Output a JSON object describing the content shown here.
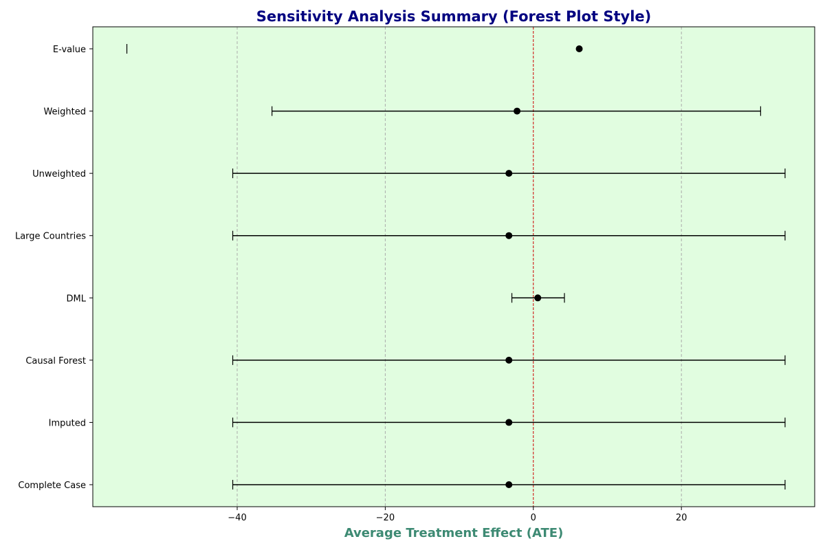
{
  "chart_data": {
    "type": "forest",
    "title": "Sensitivity Analysis Summary (Forest Plot Style)",
    "xlabel": "Average Treatment Effect (ATE)",
    "ylabel": "",
    "xlim": [
      -59.5,
      38.0
    ],
    "xticks": [
      -40,
      -20,
      0,
      20
    ],
    "xtick_labels": [
      "−40",
      "−20",
      "0",
      "20"
    ],
    "grid": "vertical dashed",
    "reference_line": 0,
    "categories": [
      "Complete Case",
      "Imputed",
      "Causal Forest",
      "DML",
      "Large Countries",
      "Unweighted",
      "Weighted",
      "E-value"
    ],
    "estimates": [
      -3.3,
      -3.3,
      -3.3,
      0.6,
      -3.3,
      -3.3,
      -2.2,
      6.2
    ],
    "ci_lower": [
      -40.6,
      -40.6,
      -40.6,
      -2.9,
      -40.6,
      -40.6,
      -35.3,
      -54.9
    ],
    "ci_upper": [
      34.0,
      34.0,
      34.0,
      4.2,
      34.0,
      34.0,
      30.7,
      -54.9
    ],
    "colors": {
      "background": "#e1fde0",
      "title": "#000080",
      "xlabel": "#3d8a73",
      "reference_line": "#cc0000",
      "grid": "#aaaaaa",
      "marker": "#000000"
    }
  }
}
